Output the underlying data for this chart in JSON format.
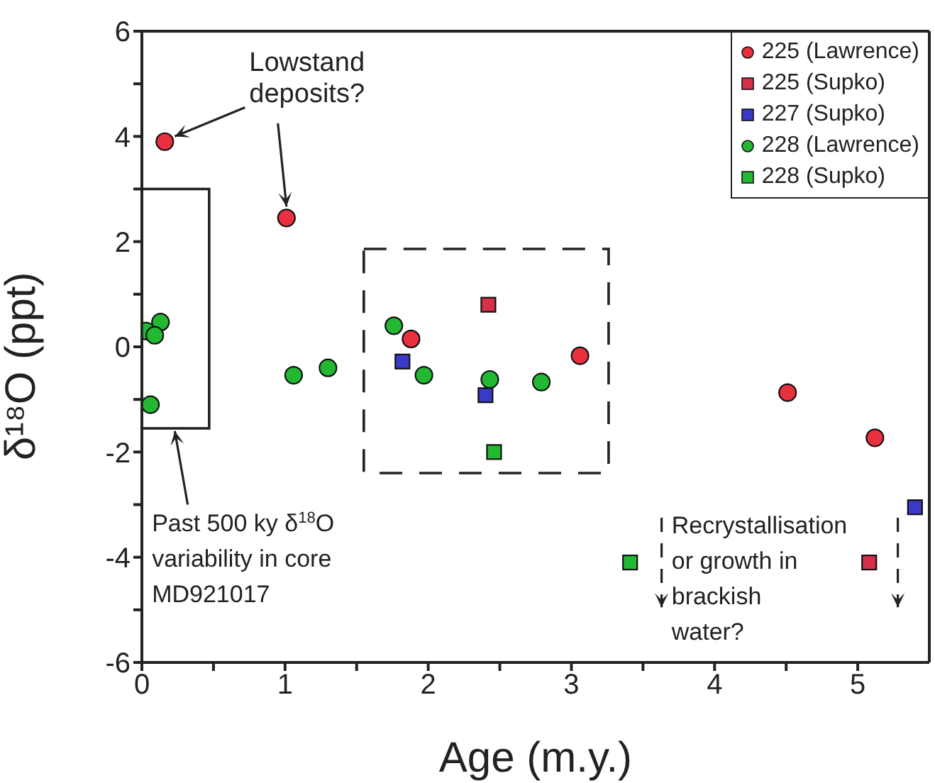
{
  "chart_data": {
    "type": "scatter",
    "xlabel": "Age (m.y.)",
    "ylabel": "δ¹⁸O (ppt)",
    "xlim": [
      0,
      5.5
    ],
    "ylim": [
      -6,
      6
    ],
    "xticks": [
      0,
      {
        "value": 0.5,
        "label": null
      },
      1,
      {
        "value": 1.5,
        "label": null
      },
      2,
      {
        "value": 2.5,
        "label": null
      },
      3,
      {
        "value": 3.5,
        "label": null
      },
      4,
      {
        "value": 4.5,
        "label": null
      },
      5
    ],
    "yticks": [
      -6,
      {
        "value": -5,
        "label": null
      },
      -4,
      {
        "value": -3,
        "label": null
      },
      -2,
      {
        "value": -1,
        "label": null
      },
      0,
      {
        "value": 1,
        "label": null
      },
      2,
      {
        "value": 3,
        "label": null
      },
      4,
      {
        "value": 5,
        "label": null
      },
      6
    ],
    "grid": false,
    "legend": "top right",
    "series": [
      {
        "name": "225 (Lawrence)",
        "color": "#e8303f",
        "marker": "circle",
        "x": [
          0.16,
          1.01,
          1.88,
          3.06,
          4.51,
          5.12
        ],
        "values": [
          3.9,
          2.45,
          0.15,
          -0.17,
          -0.87,
          -1.73
        ]
      },
      {
        "name": "225 (Supko)",
        "color": "#d8304a",
        "marker": "square",
        "x": [
          2.42,
          5.08
        ],
        "values": [
          0.8,
          -4.1
        ]
      },
      {
        "name": "227 (Supko)",
        "color": "#3a3ac8",
        "marker": "square",
        "x": [
          1.82,
          2.4,
          5.4
        ],
        "values": [
          -0.28,
          -0.92,
          -3.05
        ]
      },
      {
        "name": "228 (Lawrence)",
        "color": "#22b832",
        "marker": "circle",
        "x": [
          0.03,
          0.13,
          0.09,
          0.06,
          1.06,
          1.3,
          1.76,
          1.97,
          2.43,
          2.79
        ],
        "values": [
          0.3,
          0.47,
          0.22,
          -1.1,
          -0.54,
          -0.4,
          0.4,
          -0.54,
          -0.62,
          -0.67
        ]
      },
      {
        "name": "228 (Supko)",
        "color": "#22b832",
        "marker": "square",
        "x": [
          2.46,
          3.41
        ],
        "values": [
          -2.0,
          -4.1
        ]
      }
    ],
    "annotations": [
      {
        "text": "Lowstand deposits?",
        "x": 1.01,
        "y": 2.45
      },
      "Past 500 ky δ$^{18}$O variability in core MD921017",
      "Recrystallisation or growth in brackish water?"
    ]
  }
}
